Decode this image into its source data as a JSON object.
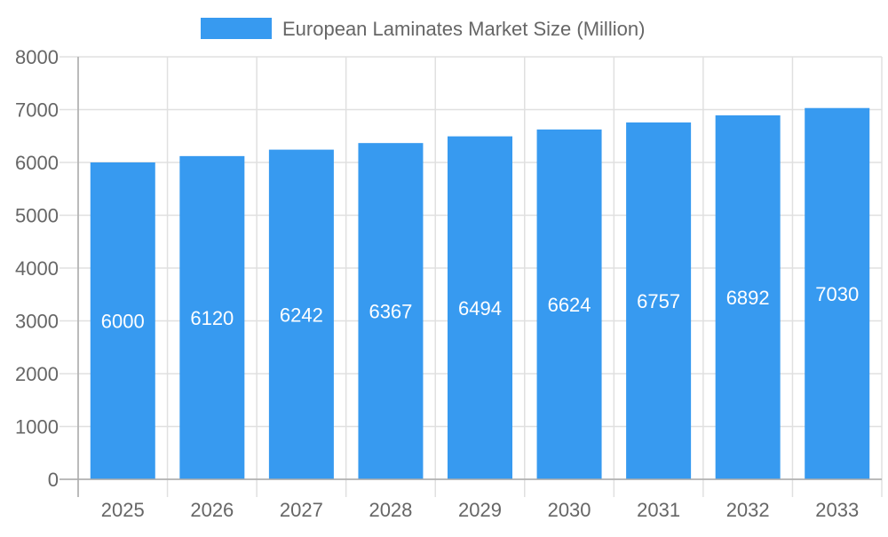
{
  "chart_data": {
    "type": "bar",
    "title": "",
    "legend": {
      "position": "top",
      "entries": [
        "European Laminates Market Size (Million)"
      ]
    },
    "categories": [
      "2025",
      "2026",
      "2027",
      "2028",
      "2029",
      "2030",
      "2031",
      "2032",
      "2033"
    ],
    "series": [
      {
        "name": "European Laminates Market Size (Million)",
        "values": [
          6000,
          6120,
          6242,
          6367,
          6494,
          6624,
          6757,
          6892,
          7030
        ],
        "color": "#379af0"
      }
    ],
    "data_labels": true,
    "xlabel": "",
    "ylabel": "",
    "ylim": [
      0,
      8000
    ],
    "yticks": [
      0,
      1000,
      2000,
      3000,
      4000,
      5000,
      6000,
      7000,
      8000
    ],
    "grid": true
  }
}
